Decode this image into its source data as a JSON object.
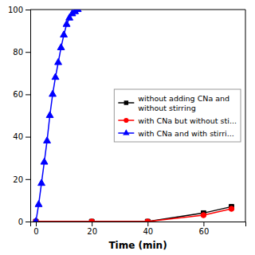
{
  "chart_data": {
    "type": "line",
    "xlabel": "Time (min)",
    "xlim": [
      -2,
      75
    ],
    "ylim": [
      0,
      100
    ],
    "xticks": [
      0,
      20,
      40,
      60
    ],
    "yticks": [
      0,
      20,
      40,
      60,
      80,
      100
    ],
    "grid": false,
    "legend": "right",
    "series": [
      {
        "name": "without adding CNa and\nwithout stirring",
        "color": "black",
        "marker": "square",
        "x": [
          0,
          20,
          40,
          60,
          70
        ],
        "values": [
          0,
          0,
          0,
          4,
          7
        ]
      },
      {
        "name": "with CNa but without sti...",
        "color": "red",
        "marker": "circle",
        "x": [
          0,
          20,
          40,
          60,
          70
        ],
        "values": [
          0,
          0,
          0,
          3,
          6
        ]
      },
      {
        "name": "with CNa and with stirri...",
        "color": "blue",
        "marker": "triangle",
        "x": [
          0,
          1,
          2,
          3,
          4,
          5,
          6,
          7,
          8,
          9,
          10,
          11,
          12,
          13,
          14,
          15
        ],
        "values": [
          0,
          8,
          18,
          28,
          38,
          50,
          60,
          68,
          75,
          82,
          88,
          93,
          96,
          98,
          99,
          100
        ]
      }
    ]
  }
}
